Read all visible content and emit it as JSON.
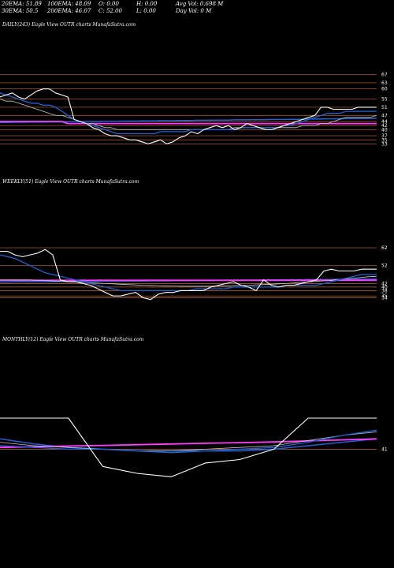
{
  "header": {
    "row1": [
      "20EMA: 51.89",
      "100EMA: 48.09",
      "O: 0.00",
      "H: 0.00",
      "Avg Vol: 0.698  M"
    ],
    "row2": [
      "30EMA: 50.5",
      "200EMA: 46.07",
      "C: 52.00",
      "L: 0.00",
      "Day Vol: 0  M"
    ]
  },
  "colors": {
    "background": "#000000",
    "price": "#ffffff",
    "ema20": "#1e63d6",
    "ema_pink": "#ff3cff",
    "grid": "#c8642a",
    "ema_other": "#c8c8c8"
  },
  "panels": {
    "daily": {
      "label": "DAILY(243) Eagle   View  OUTR charts MunafaSutra.com"
    },
    "weekly": {
      "label": "WEEKLY(51) Eagle   View  OUTR charts MunafaSutra.com"
    },
    "monthly": {
      "label": "MONTHLY(12) Eagle   View  OUTR charts MunafaSutra.com"
    }
  },
  "chart_data": [
    {
      "type": "line",
      "title": "DAILY(243)",
      "ylim": [
        32,
        68
      ],
      "levels": [
        67,
        63,
        60,
        55,
        51,
        47,
        44,
        42,
        40,
        37,
        35,
        33
      ],
      "series": [
        {
          "values": [
            56,
            57,
            58,
            56,
            55,
            57,
            59,
            60,
            60,
            58,
            57,
            56,
            45,
            44,
            43,
            41,
            40,
            38,
            37,
            37,
            36,
            35,
            35,
            34,
            33,
            34,
            35,
            33,
            34,
            36,
            37,
            39,
            38,
            40,
            41,
            42,
            41,
            42,
            40,
            41,
            43,
            42,
            41,
            40,
            40,
            41,
            42,
            43,
            44,
            45,
            46,
            47,
            51,
            51,
            50,
            50,
            50,
            50,
            51,
            51,
            51,
            51
          ]
        },
        {
          "values": [
            58,
            57,
            56,
            55,
            54,
            53,
            53,
            52,
            52,
            51,
            49,
            47,
            45,
            44,
            43,
            42,
            41,
            40,
            39,
            38,
            38,
            38,
            38,
            38,
            38,
            38,
            39,
            39,
            39,
            39,
            39,
            40,
            40,
            40,
            40,
            40,
            40,
            40,
            40,
            41,
            41,
            41,
            41,
            41,
            41,
            41,
            42,
            42,
            43,
            44,
            45,
            46,
            47,
            48,
            48,
            48,
            49,
            49,
            49,
            49,
            49,
            49
          ]
        },
        {
          "values": [
            55,
            54,
            54,
            53,
            52,
            51,
            50,
            49,
            48,
            47,
            47,
            46,
            45,
            44,
            43,
            43,
            42,
            41,
            41,
            40,
            40,
            40,
            40,
            40,
            40,
            40,
            40,
            40,
            40,
            40,
            40,
            40,
            40,
            40,
            40,
            40,
            40,
            40,
            41,
            41,
            41,
            41,
            41,
            41,
            41,
            41,
            41,
            41,
            41,
            42,
            42,
            42,
            43,
            43,
            44,
            45,
            46,
            46,
            46,
            46,
            46,
            47
          ]
        },
        {
          "values": [
            44,
            44,
            44,
            44,
            44,
            44,
            44,
            44,
            44,
            44,
            44,
            43,
            43,
            43,
            43,
            43,
            43,
            43,
            43,
            43,
            43,
            43,
            43,
            43,
            43,
            43,
            43,
            43,
            43,
            43,
            43,
            43,
            43,
            43,
            43,
            43,
            43,
            43,
            43,
            43,
            43,
            43,
            43,
            43,
            43,
            43,
            43,
            43,
            43,
            43,
            43,
            43,
            43,
            43,
            43,
            43,
            43,
            43,
            43,
            43,
            43,
            43
          ]
        },
        {
          "values": [
            43.5,
            43.5,
            43.6,
            43.6,
            43.6,
            43.7,
            43.7,
            43.7,
            43.8,
            43.8,
            43.8,
            43.9,
            43.9,
            43.9,
            44,
            44,
            44,
            44.1,
            44.1,
            44.1,
            44.2,
            44.2,
            44.2,
            44.3,
            44.3,
            44.3,
            44.4,
            44.4,
            44.4,
            44.5,
            44.5,
            44.5,
            44.6,
            44.6,
            44.6,
            44.7,
            44.7,
            44.7,
            44.8,
            44.8,
            44.8,
            44.9,
            44.9,
            44.9,
            45,
            45,
            45,
            45.1,
            45.1,
            45.1,
            45.2,
            45.2,
            45.2,
            45.3,
            45.3,
            45.3,
            45.4,
            45.4,
            45.4,
            45.5,
            45.5,
            45.5
          ]
        }
      ]
    },
    {
      "type": "line",
      "title": "WEEKLY(51)",
      "ylim": [
        32,
        66
      ],
      "levels": [
        62,
        52,
        42,
        40,
        38,
        35,
        34
      ],
      "series": [
        {
          "values": [
            60,
            60,
            58,
            57,
            58,
            59,
            61,
            58,
            44,
            43,
            43,
            42,
            41,
            39,
            37,
            35,
            35,
            36,
            37,
            34,
            33,
            36,
            37,
            37,
            38,
            38,
            38,
            38,
            40,
            41,
            42,
            43,
            41,
            40,
            38,
            44,
            41,
            40,
            41,
            41,
            42,
            43,
            44,
            49,
            50,
            49,
            49,
            49,
            50,
            50,
            50
          ]
        },
        {
          "values": [
            58,
            57,
            56,
            54,
            52,
            50,
            48,
            47,
            46,
            45,
            44,
            43,
            42,
            41,
            40,
            39,
            38,
            38,
            38,
            38,
            38,
            38,
            38,
            38,
            38,
            38,
            39,
            39,
            39,
            39,
            39,
            40,
            40,
            40,
            40,
            40,
            40,
            40,
            41,
            41,
            41,
            41,
            41,
            42,
            43,
            44,
            45,
            46,
            47,
            47,
            47
          ]
        },
        {
          "values": [
            44,
            44,
            44,
            44,
            44,
            43.8,
            43.6,
            43.4,
            43.2,
            43,
            42.8,
            42.6,
            42.4,
            42.2,
            42,
            41.8,
            41.6,
            41.4,
            41.2,
            41,
            40.9,
            40.8,
            40.7,
            40.6,
            40.5,
            40.5,
            40.5,
            40.5,
            40.5,
            40.6,
            40.7,
            40.8,
            40.9,
            41,
            41.2,
            41.4,
            41.6,
            41.8,
            42,
            42.3,
            42.6,
            42.9,
            43.2,
            43.5,
            43.8,
            44.2,
            44.6,
            45,
            45.4,
            45.8,
            46
          ]
        },
        {
          "values": [
            43.8,
            43.8,
            43.8,
            43.8,
            43.8,
            43.8,
            43.8,
            43.8,
            43.8,
            43.8,
            43.8,
            43.8,
            43.8,
            43.8,
            43.8,
            43.8,
            43.8,
            43.8,
            43.8,
            43.8,
            43.8,
            43.8,
            43.8,
            43.8,
            43.8,
            43.8,
            43.8,
            43.8,
            43.8,
            43.8,
            43.8,
            43.8,
            43.8,
            43.8,
            43.8,
            43.8,
            43.8,
            43.8,
            43.8,
            43.8,
            43.8,
            43.8,
            43.8,
            43.8,
            43.8,
            43.8,
            43.8,
            43.8,
            43.8,
            43.8,
            43.8
          ]
        },
        {
          "values": [
            42.8,
            42.8,
            42.9,
            42.9,
            42.9,
            43,
            43,
            43,
            43.1,
            43.1,
            43.1,
            43.2,
            43.2,
            43.2,
            43.3,
            43.3,
            43.3,
            43.4,
            43.4,
            43.4,
            43.5,
            43.5,
            43.5,
            43.6,
            43.6,
            43.6,
            43.7,
            43.7,
            43.7,
            43.8,
            43.8,
            43.8,
            43.9,
            43.9,
            43.9,
            44,
            44,
            44,
            44.1,
            44.1,
            44.1,
            44.2,
            44.2,
            44.2,
            44.3,
            44.3,
            44.3,
            44.4,
            44.4,
            44.4,
            44.5
          ]
        }
      ]
    },
    {
      "type": "line",
      "title": "MONTHLY(12)",
      "ylim": [
        34,
        58
      ],
      "levels": [
        41
      ],
      "series": [
        {
          "values": [
            50,
            50,
            50,
            36,
            34,
            33,
            37,
            38,
            41,
            50,
            50,
            50
          ]
        },
        {
          "values": [
            42,
            41.5,
            41,
            41,
            40.5,
            40,
            40.5,
            41,
            41.5,
            43,
            45,
            46.5
          ]
        },
        {
          "values": [
            43,
            42,
            41.5,
            41,
            40.5,
            40.5,
            41,
            41.5,
            42,
            43.5,
            45,
            46
          ]
        },
        {
          "values": [
            41.5,
            41.7,
            41.9,
            42.1,
            42.3,
            42.5,
            42.7,
            42.9,
            43.1,
            43.4,
            43.7,
            44
          ]
        },
        {
          "values": [
            44,
            42.5,
            41.5,
            41,
            40.5,
            40.5,
            40.5,
            40.5,
            41,
            42,
            43,
            44
          ]
        }
      ]
    }
  ]
}
